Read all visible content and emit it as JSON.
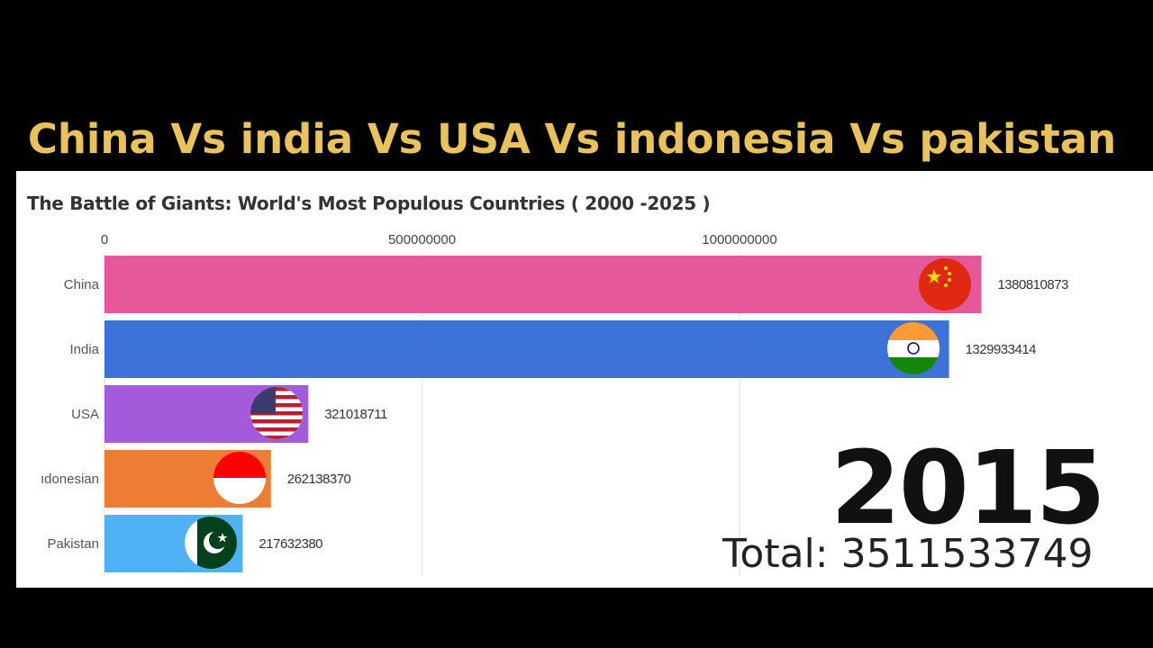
{
  "headline": "China Vs india Vs USA Vs indonesia Vs pakistan",
  "chart_data": {
    "type": "bar",
    "orientation": "horizontal",
    "title": "The Battle of Giants: World's Most Populous Countries ( 2000 -2025 )",
    "x_ticks": [
      {
        "value": 0,
        "label": "0"
      },
      {
        "value": 500000000,
        "label": "500000000"
      },
      {
        "value": 1000000000,
        "label": "1000000000"
      }
    ],
    "categories": [
      "China",
      "India",
      "USA",
      "ıdonesian",
      "Pakistan"
    ],
    "values": [
      1380810873,
      1329933414,
      321018711,
      262138370,
      217632380
    ],
    "value_labels": [
      "1380810873",
      "1329933414",
      "321018711",
      "262138370",
      "217632380"
    ],
    "colors": [
      "#e5589a",
      "#3d72d9",
      "#a35bdb",
      "#ee7d34",
      "#4fb2f5"
    ],
    "flag_icons": [
      "china-flag-icon",
      "india-flag-icon",
      "usa-flag-icon",
      "indonesia-flag-icon",
      "pakistan-flag-icon"
    ],
    "year": "2015",
    "total": "Total: 3511533749",
    "grid": true,
    "legend": "none"
  }
}
